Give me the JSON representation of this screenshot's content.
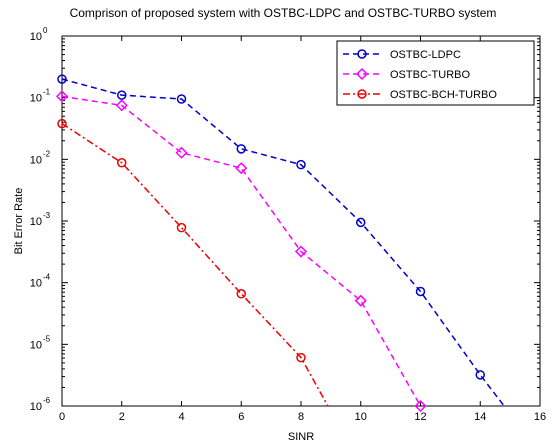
{
  "chart_data": {
    "type": "line",
    "title": "Comprison of proposed system with OSTBC-LDPC and OSTBC-TURBO system",
    "xlabel": "SINR",
    "ylabel": "Bit Error Rate",
    "xlim": [
      0,
      16
    ],
    "ylim": [
      1e-06,
      1
    ],
    "yscale": "log",
    "grid": false,
    "legend_position": "top-right",
    "x_ticks": [
      "0",
      "2",
      "4",
      "6",
      "8",
      "10",
      "12",
      "14",
      "16"
    ],
    "y_ticks": [
      {
        "base": "10",
        "exp": "0"
      },
      {
        "base": "10",
        "exp": "-1"
      },
      {
        "base": "10",
        "exp": "-2"
      },
      {
        "base": "10",
        "exp": "-3"
      },
      {
        "base": "10",
        "exp": "-4"
      },
      {
        "base": "10",
        "exp": "-5"
      },
      {
        "base": "10",
        "exp": "-6"
      }
    ],
    "series": [
      {
        "name": "OSTBC-LDPC",
        "color": "#0000cc",
        "marker": "circle",
        "line_style": "dashed",
        "x": [
          0,
          2,
          4,
          6,
          8,
          10,
          12,
          14,
          14.8
        ],
        "y": [
          0.2,
          0.11,
          0.095,
          0.0148,
          0.0082,
          0.00095,
          7.2e-05,
          3.2e-06,
          1e-06
        ]
      },
      {
        "name": "OSTBC-TURBO",
        "color": "#ff00ff",
        "marker": "diamond",
        "line_style": "dashed",
        "x": [
          0,
          2,
          4,
          6,
          8,
          10,
          12
        ],
        "y": [
          0.105,
          0.075,
          0.0128,
          0.0072,
          0.00032,
          5.1e-05,
          1e-06
        ]
      },
      {
        "name": "OSTBC-BCH-TURBO",
        "color": "#ee0000",
        "marker": "circle",
        "line_style": "dashdot",
        "x": [
          0,
          2,
          4,
          6,
          8,
          8.9
        ],
        "y": [
          0.038,
          0.0088,
          0.00078,
          6.6e-05,
          6.1e-06,
          1e-06
        ]
      }
    ]
  }
}
